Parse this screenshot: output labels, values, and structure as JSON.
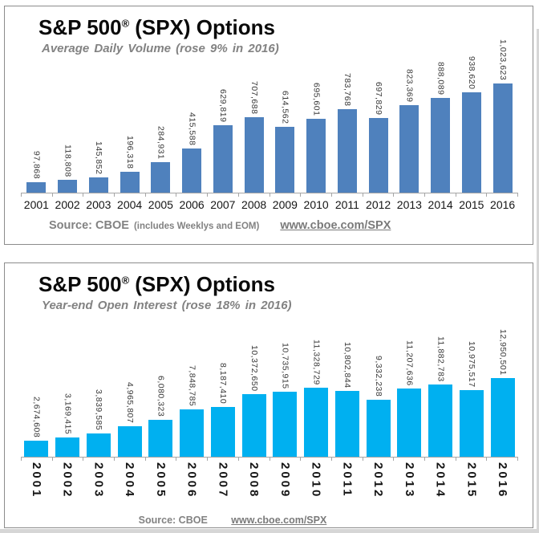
{
  "panels": [
    {
      "title_main": "S&P 500",
      "title_reg": "®",
      "title_rest": "(SPX) Options",
      "subtitle": "Average Daily Volume (rose 9% in 2016)",
      "source_label": "Source: CBOE",
      "source_note": "(includes Weeklys and EOM)",
      "source_link": "www.cboe.com/SPX"
    },
    {
      "title_main": "S&P 500",
      "title_reg": "®",
      "title_rest": "(SPX) Options",
      "subtitle": "Year-end Open Interest (rose 18% in 2016)",
      "source_label": "Source: CBOE",
      "source_link": "www.cboe.com/SPX"
    }
  ],
  "chart_data": [
    {
      "type": "bar",
      "title": "S&P 500® (SPX) Options",
      "subtitle": "Average Daily Volume (rose 9% in 2016)",
      "categories": [
        "2001",
        "2002",
        "2003",
        "2004",
        "2005",
        "2006",
        "2007",
        "2008",
        "2009",
        "2010",
        "2011",
        "2012",
        "2013",
        "2014",
        "2015",
        "2016"
      ],
      "values": [
        97868,
        118808,
        145852,
        196318,
        284931,
        415588,
        629819,
        707688,
        614562,
        695601,
        783768,
        697829,
        823369,
        888089,
        938620,
        1023623
      ],
      "value_labels": [
        "97,868",
        "118,808",
        "145,852",
        "196,318",
        "284,931",
        "415,588",
        "629,819",
        "707,688",
        "614,562",
        "695,601",
        "783,768",
        "697,829",
        "823,369",
        "888,089",
        "938,620",
        "1,023,623"
      ],
      "bar_color": "#4f81bd",
      "xlabel": "",
      "ylabel": "",
      "ylim": [
        0,
        1023623
      ],
      "grid": false,
      "legend": "none",
      "value_label_rotation": "vertical-top-to-bottom",
      "x_tick_label_rotation": "horizontal"
    },
    {
      "type": "bar",
      "title": "S&P 500® (SPX) Options",
      "subtitle": "Year-end Open Interest (rose 18% in 2016)",
      "categories": [
        "2001",
        "2002",
        "2003",
        "2004",
        "2005",
        "2006",
        "2007",
        "2008",
        "2009",
        "2010",
        "2011",
        "2012",
        "2013",
        "2014",
        "2015",
        "2016"
      ],
      "values": [
        2674608,
        3169415,
        3839585,
        4965807,
        6080323,
        7848785,
        8187410,
        10372650,
        10735915,
        11328729,
        10802844,
        9332238,
        11207636,
        11882783,
        10975517,
        12950501
      ],
      "value_labels": [
        "2,674,608",
        "3,169,415",
        "3,839,585",
        "4,965,807",
        "6,080,323",
        "7,848,785",
        "8,187,410",
        "10,372,650",
        "10,735,915",
        "11,328,729",
        "10,802,844",
        "9,332,238",
        "11,207,636",
        "11,882,783",
        "10,975,517",
        "12,950,501"
      ],
      "bar_color": "#00b0f0",
      "xlabel": "",
      "ylabel": "",
      "ylim": [
        0,
        12950501
      ],
      "grid": false,
      "legend": "none",
      "value_label_rotation": "vertical-top-to-bottom",
      "x_tick_label_rotation": "vertical-top-to-bottom"
    }
  ],
  "colors": {
    "volume_bar": "#4f81bd",
    "open_interest_bar": "#00b0f0",
    "panel_border": "#8c8c8c",
    "axis": "#a6a6a6",
    "subtitle_gray": "#828282"
  }
}
